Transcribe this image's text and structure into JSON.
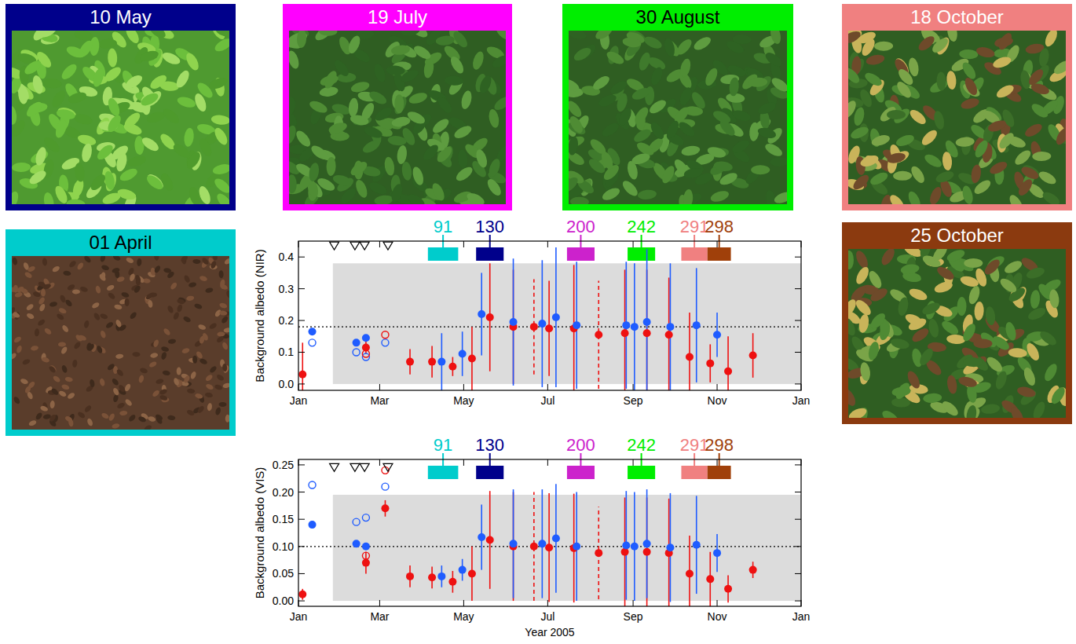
{
  "photos": [
    {
      "label": "10 May",
      "color": "#00008b"
    },
    {
      "label": "01 April",
      "color": "#00cccc"
    },
    {
      "label": "19 July",
      "color": "#ff00ff"
    },
    {
      "label": "30 August",
      "color": "#00ee00"
    },
    {
      "label": "18 October",
      "color": "#f08080"
    },
    {
      "label": "25 October",
      "color": "#8b3a0f"
    }
  ],
  "chart_data": [
    {
      "type": "scatter",
      "y_label": "Background albedo (NIR)",
      "xlim": [
        1,
        366
      ],
      "xticks": [
        {
          "value": 1,
          "label": "Jan"
        },
        {
          "value": 60,
          "label": "Mar"
        },
        {
          "value": 121,
          "label": "May"
        },
        {
          "value": 182,
          "label": "Jul"
        },
        {
          "value": 244,
          "label": "Sep"
        },
        {
          "value": 305,
          "label": "Nov"
        },
        {
          "value": 366,
          "label": "Jan"
        }
      ],
      "ylim": [
        -0.02,
        0.45
      ],
      "yticks": [
        {
          "value": 0,
          "label": "0.0"
        },
        0.1,
        0.2,
        0.3,
        0.4
      ],
      "band": {
        "x": [
          26,
          366
        ],
        "y": [
          0,
          0.38
        ]
      },
      "reference_line": 0.18,
      "annotations": [
        {
          "label": "91",
          "x": [
            95,
            117
          ],
          "color": "#00cccc"
        },
        {
          "label": "130",
          "x": [
            130,
            150
          ],
          "color": "#00008b"
        },
        {
          "label": "200",
          "x": [
            196,
            216
          ],
          "color": "#cc22cc"
        },
        {
          "label": "242",
          "x": [
            240,
            260
          ],
          "color": "#00ee00"
        },
        {
          "label": "291",
          "x": [
            279,
            298
          ],
          "color": "#f08080"
        },
        {
          "label": "298",
          "x": [
            298,
            315
          ],
          "color": "#a0400a"
        }
      ],
      "series": [
        {
          "color": "#ee1111",
          "marker": "circle",
          "line_style": "solid",
          "x": [
            4,
            50,
            82,
            98,
            113,
            127,
            140,
            157,
            183,
            201,
            238,
            254,
            270,
            285,
            300,
            313,
            331
          ],
          "values": [
            0.03,
            0.115,
            0.07,
            0.07,
            0.055,
            0.08,
            0.21,
            0.18,
            0.175,
            0.175,
            0.16,
            0.16,
            0.155,
            0.085,
            0.065,
            0.04,
            0.09
          ],
          "errors": [
            0.1,
            0.02,
            0.04,
            0.05,
            0.03,
            0.1,
            0.17,
            0.18,
            0.15,
            0.2,
            0.2,
            0.2,
            0.18,
            0.14,
            0.06,
            0.11,
            0.07
          ]
        },
        {
          "color": "#ee1111",
          "marker": "circle",
          "line_style": "dashed",
          "x": [
            172,
            219
          ],
          "values": [
            0.18,
            0.155
          ],
          "errors": [
            0.15,
            0.17
          ]
        },
        {
          "color": "#1f5cff",
          "marker": "circle",
          "line_style": "solid",
          "x": [
            11,
            43,
            50,
            105,
            120,
            134,
            157,
            178,
            188,
            203,
            239,
            245,
            254,
            271,
            290,
            305
          ],
          "values": [
            0.165,
            0.13,
            0.145,
            0.07,
            0.095,
            0.22,
            0.195,
            0.19,
            0.21,
            0.185,
            0.185,
            0.18,
            0.195,
            0.18,
            0.185,
            0.155
          ],
          "errors": [
            0.01,
            0.01,
            0.01,
            0.09,
            0.07,
            0.13,
            0.2,
            0.2,
            0.22,
            0.2,
            0.2,
            0.2,
            0.23,
            0.2,
            0.18,
            0.07
          ]
        },
        {
          "color": "#1f5cff",
          "marker": "open-circle",
          "x": [
            11,
            43,
            50,
            64
          ],
          "values": [
            0.13,
            0.1,
            0.085,
            0.13
          ]
        },
        {
          "color": "#ee1111",
          "marker": "open-circle",
          "x": [
            50,
            64
          ],
          "values": [
            0.095,
            0.155
          ]
        },
        {
          "color": "#000000",
          "marker": "triangle",
          "x": [
            27,
            42,
            49,
            66
          ],
          "values": [
            0.435,
            0.435,
            0.435,
            0.435
          ]
        }
      ]
    },
    {
      "type": "scatter",
      "y_label": "Background albedo (VIS)",
      "x_label": "Year 2005",
      "xlim": [
        1,
        366
      ],
      "xticks": [
        {
          "value": 1,
          "label": "Jan"
        },
        {
          "value": 60,
          "label": "Mar"
        },
        {
          "value": 121,
          "label": "May"
        },
        {
          "value": 182,
          "label": "Jul"
        },
        {
          "value": 244,
          "label": "Sep"
        },
        {
          "value": 305,
          "label": "Nov"
        },
        {
          "value": 366,
          "label": "Jan"
        }
      ],
      "ylim": [
        -0.01,
        0.26
      ],
      "yticks": [
        {
          "value": 0,
          "label": "0.00"
        },
        0.05,
        {
          "value": 0.1,
          "label": "0.10"
        },
        0.15,
        {
          "value": 0.2,
          "label": "0.20"
        },
        0.25
      ],
      "band": {
        "x": [
          26,
          366
        ],
        "y": [
          0,
          0.195
        ]
      },
      "reference_line": 0.1,
      "annotations": [
        {
          "label": "91",
          "x": [
            95,
            117
          ],
          "color": "#00cccc"
        },
        {
          "label": "130",
          "x": [
            130,
            150
          ],
          "color": "#00008b"
        },
        {
          "label": "200",
          "x": [
            196,
            216
          ],
          "color": "#cc22cc"
        },
        {
          "label": "242",
          "x": [
            240,
            260
          ],
          "color": "#00ee00"
        },
        {
          "label": "291",
          "x": [
            279,
            298
          ],
          "color": "#f08080"
        },
        {
          "label": "298",
          "x": [
            298,
            315
          ],
          "color": "#a0400a"
        }
      ],
      "series": [
        {
          "color": "#ee1111",
          "marker": "circle",
          "line_style": "solid",
          "x": [
            4,
            50,
            64,
            82,
            98,
            113,
            127,
            140,
            157,
            183,
            201,
            238,
            254,
            270,
            285,
            300,
            313,
            331
          ],
          "values": [
            0.012,
            0.07,
            0.17,
            0.045,
            0.043,
            0.035,
            0.05,
            0.112,
            0.1,
            0.098,
            0.097,
            0.09,
            0.09,
            0.088,
            0.05,
            0.04,
            0.022,
            0.057
          ],
          "errors": [
            0.01,
            0.02,
            0.015,
            0.02,
            0.02,
            0.02,
            0.05,
            0.09,
            0.1,
            0.1,
            0.1,
            0.1,
            0.1,
            0.1,
            0.07,
            0.05,
            0.025,
            0.015
          ]
        },
        {
          "color": "#ee1111",
          "marker": "circle",
          "line_style": "dashed",
          "x": [
            172,
            219
          ],
          "values": [
            0.1,
            0.088
          ],
          "errors": [
            0.1,
            0.085
          ]
        },
        {
          "color": "#1f5cff",
          "marker": "circle",
          "line_style": "solid",
          "x": [
            11,
            43,
            50,
            105,
            120,
            134,
            157,
            178,
            188,
            203,
            239,
            245,
            254,
            271,
            290,
            305
          ],
          "values": [
            0.14,
            0.105,
            0.1,
            0.045,
            0.057,
            0.117,
            0.105,
            0.105,
            0.115,
            0.1,
            0.102,
            0.1,
            0.105,
            0.098,
            0.103,
            0.088
          ],
          "errors": [
            0.007,
            0.005,
            0.005,
            0.02,
            0.02,
            0.06,
            0.1,
            0.1,
            0.1,
            0.1,
            0.1,
            0.1,
            0.1,
            0.1,
            0.09,
            0.035
          ]
        },
        {
          "color": "#1f5cff",
          "marker": "open-circle",
          "x": [
            11,
            43,
            50,
            64
          ],
          "values": [
            0.213,
            0.145,
            0.153,
            0.21
          ]
        },
        {
          "color": "#ee1111",
          "marker": "open-circle",
          "x": [
            50,
            64
          ],
          "values": [
            0.083,
            0.24
          ]
        },
        {
          "color": "#000000",
          "marker": "triangle",
          "x": [
            27,
            42,
            49,
            66
          ],
          "values": [
            0.245,
            0.245,
            0.245,
            0.245
          ]
        }
      ]
    }
  ]
}
